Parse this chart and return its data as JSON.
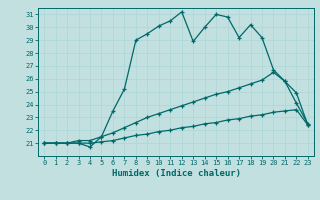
{
  "xlabel": "Humidex (Indice chaleur)",
  "bg_color": "#c2e0e0",
  "line_color": "#006868",
  "grid_color": "#b0d8d8",
  "xlim": [
    -0.5,
    23.5
  ],
  "ylim": [
    20,
    31.5
  ],
  "xticks": [
    0,
    1,
    2,
    3,
    4,
    5,
    6,
    7,
    8,
    9,
    10,
    11,
    12,
    13,
    14,
    15,
    16,
    17,
    18,
    19,
    20,
    21,
    22,
    23
  ],
  "yticks": [
    21,
    22,
    23,
    24,
    25,
    26,
    27,
    28,
    29,
    30,
    31
  ],
  "line1_x": [
    0,
    1,
    2,
    3,
    4,
    5,
    6,
    7,
    8,
    9,
    10,
    11,
    12,
    13,
    14,
    15,
    16,
    17,
    18,
    19,
    20,
    21,
    22,
    23
  ],
  "line1_y": [
    21.0,
    21.0,
    21.0,
    21.0,
    20.7,
    21.5,
    23.5,
    25.2,
    29.0,
    29.5,
    30.1,
    30.5,
    31.2,
    28.9,
    30.0,
    31.0,
    30.8,
    29.2,
    30.2,
    29.2,
    26.7,
    25.8,
    24.1,
    22.5
  ],
  "line2_x": [
    0,
    1,
    2,
    3,
    4,
    5,
    6,
    7,
    8,
    9,
    10,
    11,
    12,
    13,
    14,
    15,
    16,
    17,
    18,
    19,
    20,
    21,
    22,
    23
  ],
  "line2_y": [
    21.0,
    21.0,
    21.0,
    21.2,
    21.2,
    21.5,
    21.8,
    22.2,
    22.6,
    23.0,
    23.3,
    23.6,
    23.9,
    24.2,
    24.5,
    24.8,
    25.0,
    25.3,
    25.6,
    25.9,
    26.5,
    25.8,
    24.9,
    22.4
  ],
  "line3_x": [
    0,
    1,
    2,
    3,
    4,
    5,
    6,
    7,
    8,
    9,
    10,
    11,
    12,
    13,
    14,
    15,
    16,
    17,
    18,
    19,
    20,
    21,
    22,
    23
  ],
  "line3_y": [
    21.0,
    21.0,
    21.0,
    21.0,
    21.0,
    21.1,
    21.2,
    21.4,
    21.6,
    21.7,
    21.9,
    22.0,
    22.2,
    22.3,
    22.5,
    22.6,
    22.8,
    22.9,
    23.1,
    23.2,
    23.4,
    23.5,
    23.6,
    22.4
  ]
}
